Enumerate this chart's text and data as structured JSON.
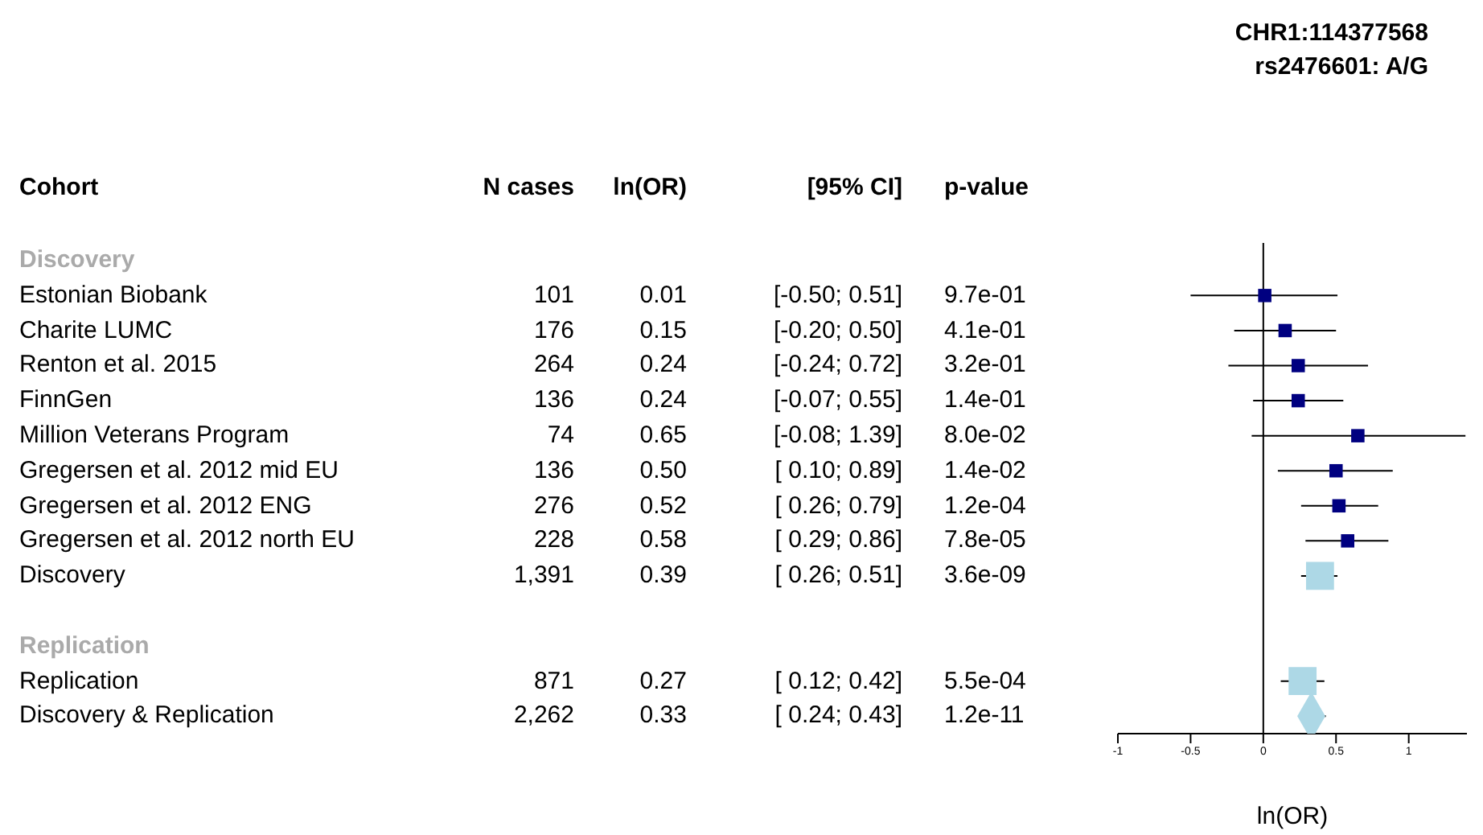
{
  "chart_data": [
    {
      "type": "other",
      "categories": [
        "Cohort",
        "N cases",
        "ln(OR)",
        "[95% CI]",
        "p-value"
      ],
      "cell_labels": [
        [
          "Discovery",
          null,
          null,
          null,
          null
        ],
        [
          "Estonian Biobank",
          "101",
          "0.01",
          "[-0.50; 0.51]",
          "9.7e-01"
        ],
        [
          "Charite LUMC",
          "176",
          "0.15",
          "[-0.20; 0.50]",
          "4.1e-01"
        ],
        [
          "Renton et al. 2015",
          "264",
          "0.24",
          "[-0.24; 0.72]",
          "3.2e-01"
        ],
        [
          "FinnGen",
          "136",
          "0.24",
          "[-0.07; 0.55]",
          "1.4e-01"
        ],
        [
          "Million Veterans Program",
          "74",
          "0.65",
          "[-0.08; 1.39]",
          "8.0e-02"
        ],
        [
          "Gregersen et al. 2012 mid EU",
          "136",
          "0.50",
          "[ 0.10; 0.89]",
          "1.4e-02"
        ],
        [
          "Gregersen et al. 2012 ENG",
          "276",
          "0.52",
          "[ 0.26; 0.79]",
          "1.2e-04"
        ],
        [
          "Gregersen et al. 2012 north EU",
          "228",
          "0.58",
          "[ 0.29; 0.86]",
          "7.8e-05"
        ],
        [
          "Discovery",
          "1,391",
          "0.39",
          "[ 0.26; 0.51]",
          "3.6e-09"
        ],
        [
          null,
          null,
          null,
          null,
          null
        ],
        [
          "Replication",
          null,
          null,
          null,
          null
        ],
        [
          "Replication",
          "871",
          "0.27",
          "[ 0.12; 0.42]",
          "5.5e-04"
        ],
        [
          "Discovery & Replication",
          "2,262",
          "0.33",
          "[ 0.24; 0.43]",
          "1.2e-11"
        ]
      ]
    },
    {
      "type": "scatter",
      "title": "CHR1:114377568",
      "subtitle": "rs2476601: A/G",
      "xlabel": "ln(OR)",
      "orientation": "horizontal",
      "categories": [
        null,
        null,
        null,
        null,
        null,
        null,
        null,
        null,
        null,
        null,
        null,
        null,
        null,
        null
      ],
      "xlim": [
        -1,
        1.4
      ],
      "xticks": [
        -1,
        -0.5,
        0,
        0.5,
        1
      ],
      "ref_lines": [
        {
          "axis": "x",
          "value": 0,
          "color": "#000000"
        }
      ],
      "series": [
        {
          "color": "#000080",
          "marker": "square",
          "values": [
            null,
            0.01,
            0.15,
            0.24,
            0.24,
            0.65,
            0.5,
            0.52,
            0.58,
            null,
            null,
            null,
            null,
            null
          ],
          "errors": [
            null,
            [
              -0.5,
              0.51
            ],
            [
              -0.2,
              0.5
            ],
            [
              -0.24,
              0.72
            ],
            [
              -0.07,
              0.55
            ],
            [
              -0.08,
              1.39
            ],
            [
              0.1,
              0.89
            ],
            [
              0.26,
              0.79
            ],
            [
              0.29,
              0.86
            ],
            null,
            null,
            null,
            null,
            null
          ]
        },
        {
          "color": "#add8e6",
          "marker": "square",
          "values": [
            null,
            null,
            null,
            null,
            null,
            null,
            null,
            null,
            null,
            0.39,
            null,
            null,
            0.27,
            null
          ],
          "errors": [
            null,
            null,
            null,
            null,
            null,
            null,
            null,
            null,
            null,
            [
              0.26,
              0.51
            ],
            null,
            null,
            [
              0.12,
              0.42
            ],
            null
          ]
        },
        {
          "color": "#add8e6",
          "marker": "diamond",
          "values": [
            null,
            null,
            null,
            null,
            null,
            null,
            null,
            null,
            null,
            null,
            null,
            null,
            null,
            0.33
          ],
          "errors": [
            null,
            null,
            null,
            null,
            null,
            null,
            null,
            null,
            null,
            null,
            null,
            null,
            null,
            [
              0.24,
              0.43
            ]
          ]
        }
      ]
    }
  ]
}
